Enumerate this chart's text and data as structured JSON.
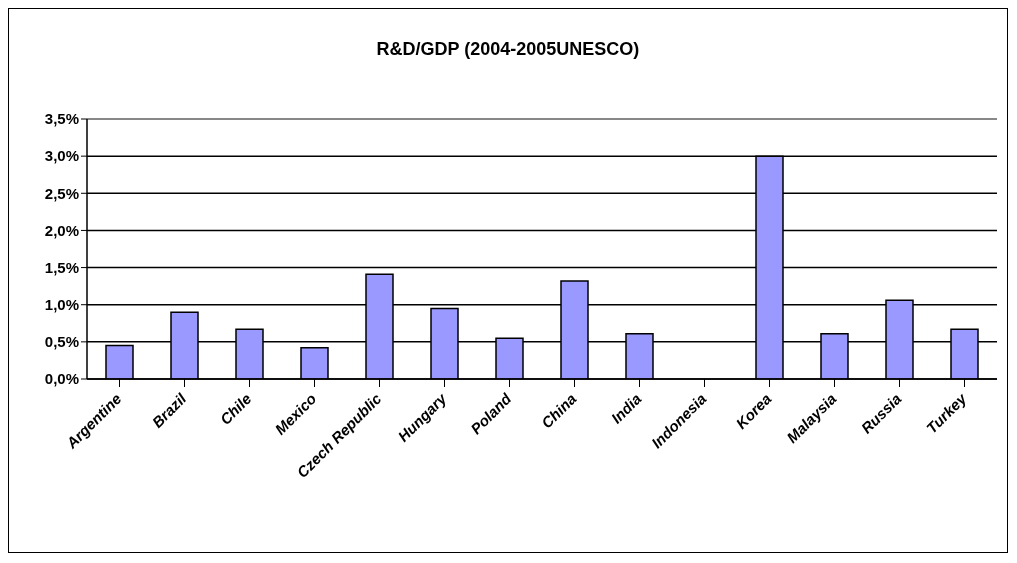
{
  "chart_data": {
    "type": "bar",
    "title": "R&D/GDP (2004-2005UNESCO)",
    "categories": [
      "Argentine",
      "Brazil",
      "Chile",
      "Mexico",
      "Czech Republic",
      "Hungary",
      "Poland",
      "China",
      "India",
      "Indonesia",
      "Korea",
      "Malaysia",
      "Russia",
      "Turkey"
    ],
    "values": [
      0.45,
      0.9,
      0.67,
      0.42,
      1.41,
      0.95,
      0.55,
      1.32,
      0.61,
      null,
      3.0,
      0.61,
      1.06,
      0.67
    ],
    "color": "#9999ff",
    "ylim": [
      0,
      3.5
    ],
    "yticks": [
      {
        "value": 0,
        "label": "0,0%"
      },
      {
        "value": 0.5,
        "label": "0,5%"
      },
      {
        "value": 1,
        "label": "1,0%"
      },
      {
        "value": 1.5,
        "label": "1,5%"
      },
      {
        "value": 2,
        "label": "2,0%"
      },
      {
        "value": 2.5,
        "label": "2,5%"
      },
      {
        "value": 3,
        "label": "3,0%"
      },
      {
        "value": 3.5,
        "label": "3,5%"
      }
    ],
    "grid": "y"
  }
}
